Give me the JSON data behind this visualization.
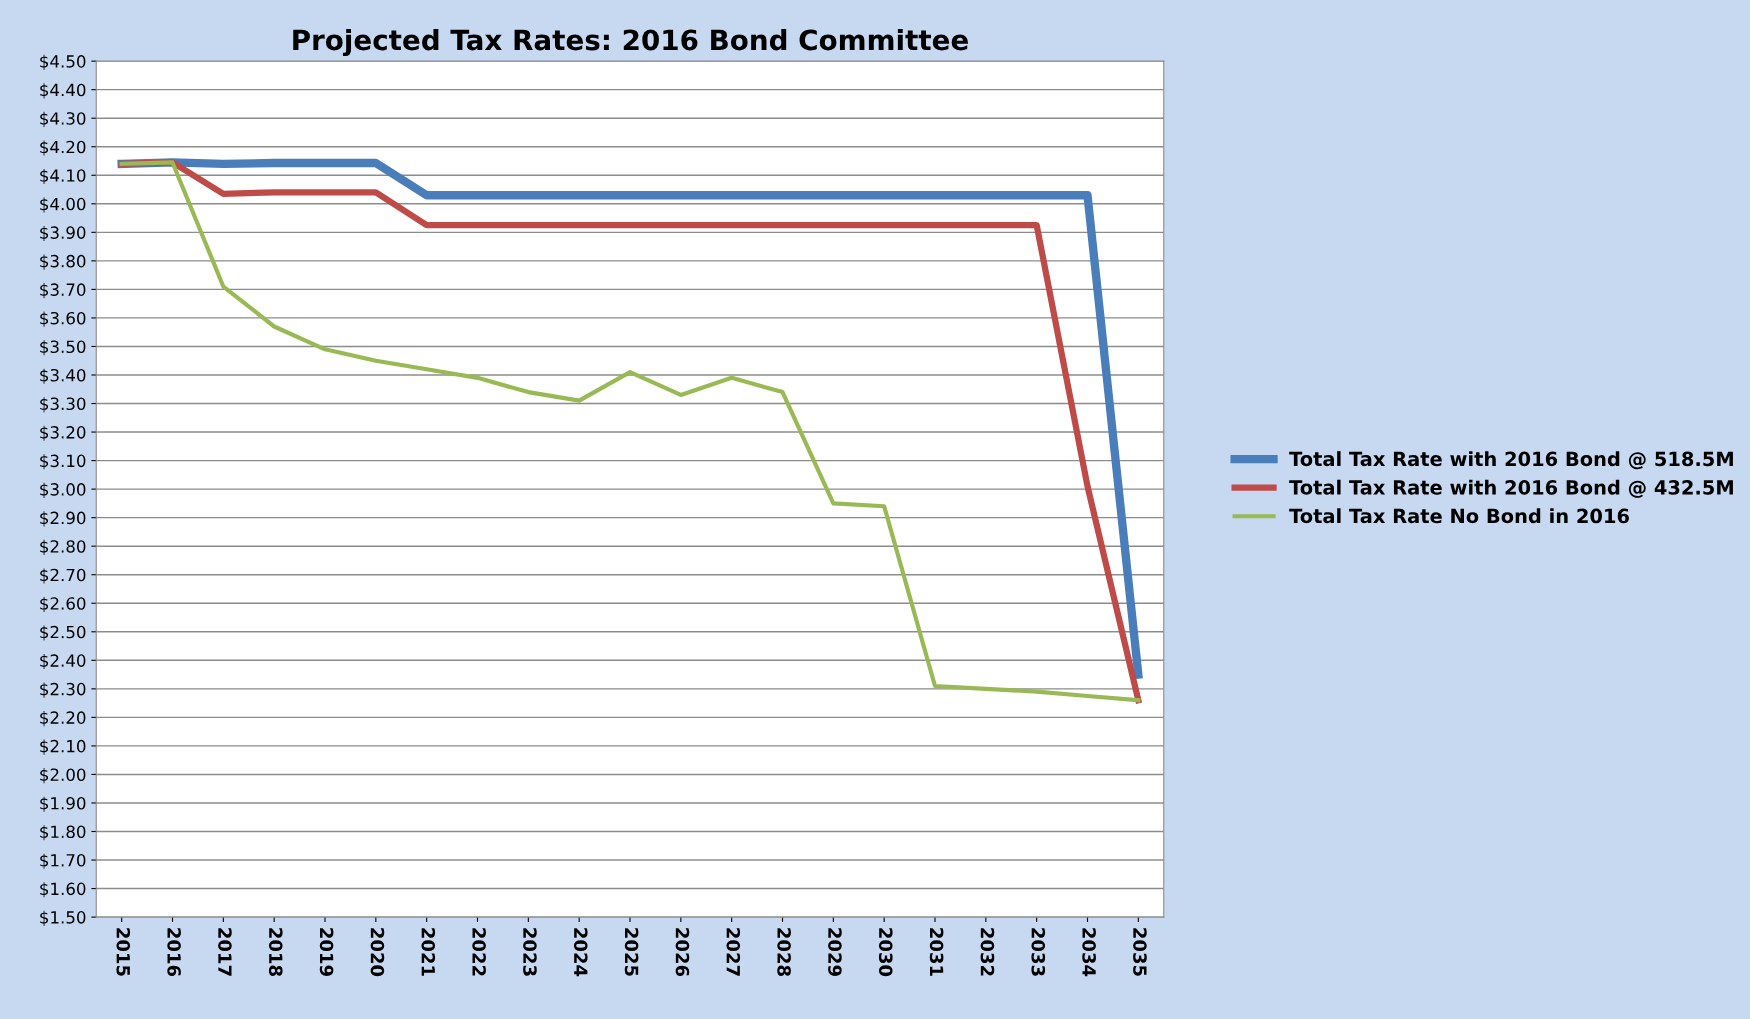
{
  "chart_data": {
    "type": "line",
    "title": "Projected Tax Rates: 2016 Bond Committee",
    "categories": [
      "2015",
      "2016",
      "2017",
      "2018",
      "2019",
      "2020",
      "2021",
      "2022",
      "2023",
      "2024",
      "2025",
      "2026",
      "2027",
      "2028",
      "2029",
      "2030",
      "2031",
      "2032",
      "2033",
      "2034",
      "2035"
    ],
    "series": [
      {
        "name": "Total Tax Rate with 2016 Bond @ 518.5M",
        "color": "#4a7ebb",
        "values": [
          4.14,
          4.145,
          4.14,
          4.143,
          4.143,
          4.143,
          4.03,
          4.03,
          4.03,
          4.03,
          4.03,
          4.03,
          4.03,
          4.03,
          4.03,
          4.03,
          4.03,
          4.03,
          4.03,
          4.03,
          2.35
        ]
      },
      {
        "name": "Total Tax Rate with 2016 Bond @ 432.5M",
        "color": "#be4b48",
        "values": [
          4.14,
          4.145,
          4.035,
          4.04,
          4.04,
          4.04,
          3.925,
          3.925,
          3.925,
          3.925,
          3.925,
          3.925,
          3.925,
          3.925,
          3.925,
          3.925,
          3.925,
          3.925,
          3.925,
          3.01,
          2.26
        ]
      },
      {
        "name": "Total Tax Rate No Bond in 2016",
        "color": "#98b954",
        "values": [
          4.14,
          4.145,
          3.71,
          3.57,
          3.49,
          3.45,
          3.42,
          3.39,
          3.34,
          3.31,
          3.41,
          3.33,
          3.39,
          3.34,
          2.95,
          2.94,
          2.31,
          2.3,
          2.29,
          2.275,
          2.26
        ]
      }
    ],
    "ylim": [
      1.5,
      4.5
    ],
    "yticks": [
      {
        "value": 1.5,
        "label": "$1.50"
      },
      {
        "value": 1.6,
        "label": "$1.60"
      },
      {
        "value": 1.7,
        "label": "$1.70"
      },
      {
        "value": 1.8,
        "label": "$1.80"
      },
      {
        "value": 1.9,
        "label": "$1.90"
      },
      {
        "value": 2.0,
        "label": "$2.00"
      },
      {
        "value": 2.1,
        "label": "$2.10"
      },
      {
        "value": 2.2,
        "label": "$2.20"
      },
      {
        "value": 2.3,
        "label": "$2.30"
      },
      {
        "value": 2.4,
        "label": "$2.40"
      },
      {
        "value": 2.5,
        "label": "$2.50"
      },
      {
        "value": 2.6,
        "label": "$2.60"
      },
      {
        "value": 2.7,
        "label": "$2.70"
      },
      {
        "value": 2.8,
        "label": "$2.80"
      },
      {
        "value": 2.9,
        "label": "$2.90"
      },
      {
        "value": 3.0,
        "label": "$3.00"
      },
      {
        "value": 3.1,
        "label": "$3.10"
      },
      {
        "value": 3.2,
        "label": "$3.20"
      },
      {
        "value": 3.3,
        "label": "$3.30"
      },
      {
        "value": 3.4,
        "label": "$3.40"
      },
      {
        "value": 3.5,
        "label": "$3.50"
      },
      {
        "value": 3.6,
        "label": "$3.60"
      },
      {
        "value": 3.7,
        "label": "$3.70"
      },
      {
        "value": 3.8,
        "label": "$3.80"
      },
      {
        "value": 3.9,
        "label": "$3.90"
      },
      {
        "value": 4.0,
        "label": "$4.00"
      },
      {
        "value": 4.1,
        "label": "$4.10"
      },
      {
        "value": 4.2,
        "label": "$4.20"
      },
      {
        "value": 4.3,
        "label": "$4.30"
      },
      {
        "value": 4.4,
        "label": "$4.40"
      },
      {
        "value": 4.5,
        "label": "$4.50"
      }
    ],
    "grid": "y",
    "legend": "right",
    "marker": "none",
    "line_style": "solid"
  }
}
